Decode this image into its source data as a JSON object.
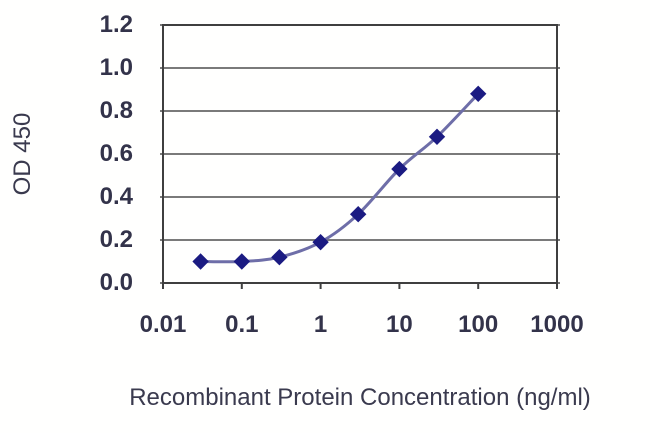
{
  "figure": {
    "background": "#fffffe"
  },
  "chart_data": {
    "type": "line",
    "title": "",
    "xlabel": "Recombinant Protein Concentration (ng/ml)",
    "ylabel": "OD 450",
    "x_scale": "log",
    "xlim": [
      0.01,
      1000
    ],
    "ylim": [
      0,
      1.2
    ],
    "x_ticks": [
      "0.01",
      "0.1",
      "1",
      "10",
      "100",
      "1000"
    ],
    "x_tick_values": [
      0.01,
      0.1,
      1,
      10,
      100,
      1000
    ],
    "y_ticks": [
      "0.0",
      "0.2",
      "0.4",
      "0.6",
      "0.8",
      "1.0",
      "1.2"
    ],
    "y_tick_values": [
      0,
      0.2,
      0.4,
      0.6,
      0.8,
      1.0,
      1.2
    ],
    "grid": "horizontal",
    "legend": "none",
    "series": [
      {
        "name": "OD 450",
        "marker": "diamond",
        "x": [
          0.03,
          0.1,
          0.3,
          1,
          3,
          10,
          30,
          100
        ],
        "y": [
          0.1,
          0.1,
          0.12,
          0.19,
          0.32,
          0.53,
          0.68,
          0.88
        ]
      }
    ],
    "colors": {
      "marker": "#1b1b82",
      "line": "#6e6ea8",
      "grid": "#7a7a7a",
      "border": "#3f3f3f",
      "tick_text": "#33334a",
      "title_text": "#3a3a4e"
    }
  }
}
